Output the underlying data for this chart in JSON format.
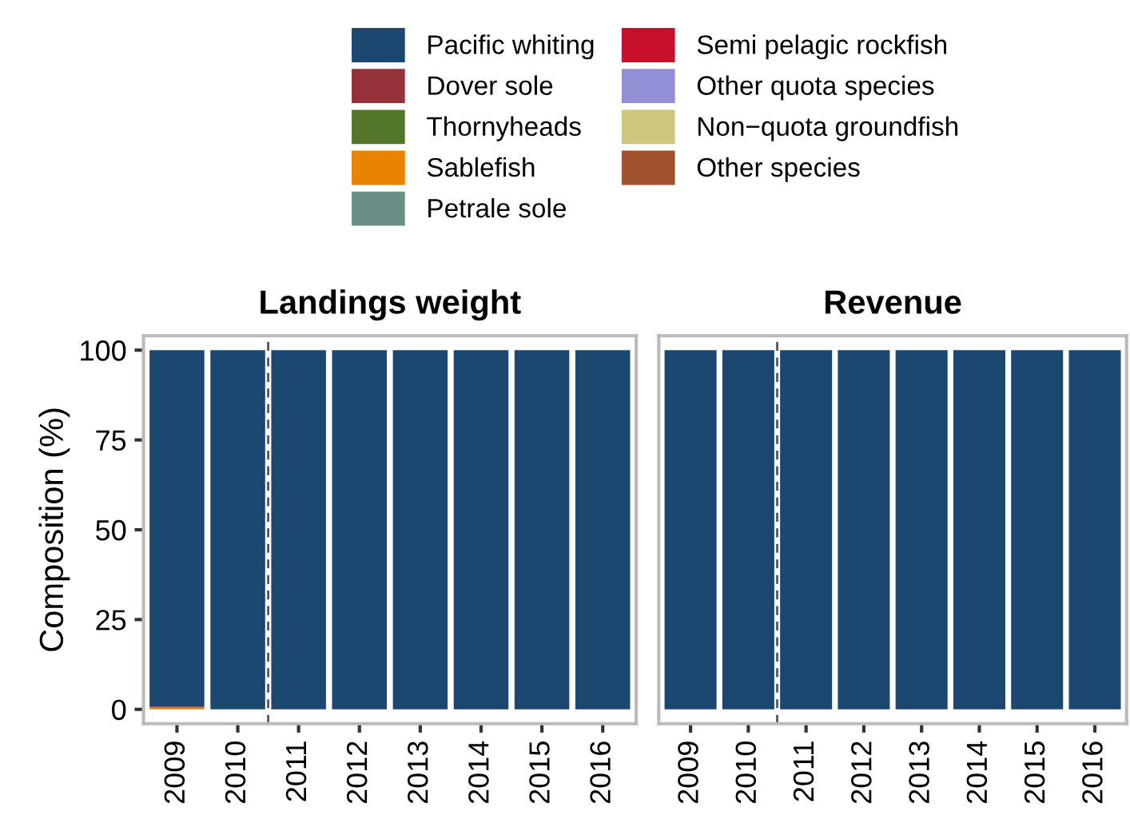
{
  "chart_data": [
    {
      "type": "bar",
      "title": "Landings weight",
      "ylabel": "Composition (%)",
      "stacked": true,
      "categories": [
        "2009",
        "2010",
        "2011",
        "2012",
        "2013",
        "2014",
        "2015",
        "2016"
      ],
      "ylim": [
        -4,
        104
      ],
      "yticks": [
        0,
        25,
        50,
        75,
        100
      ],
      "grid": false,
      "legend": "top",
      "series": [
        {
          "name": "Other species",
          "color": "#a0522d",
          "values": [
            0,
            0,
            0,
            0,
            0,
            0,
            0,
            0
          ]
        },
        {
          "name": "Non−quota groundfish",
          "color": "#cdc67e",
          "values": [
            0,
            0,
            0,
            0,
            0,
            0,
            0,
            0
          ]
        },
        {
          "name": "Other quota species",
          "color": "#938fd6",
          "values": [
            0,
            0,
            0,
            0,
            0,
            0,
            0,
            0
          ]
        },
        {
          "name": "Semi pelagic rockfish",
          "color": "#c8102e",
          "values": [
            0,
            0,
            0,
            0,
            0,
            0,
            0,
            0
          ]
        },
        {
          "name": "Petrale sole",
          "color": "#6b8f87",
          "values": [
            0,
            0,
            0,
            0,
            0,
            0,
            0,
            0
          ]
        },
        {
          "name": "Sablefish",
          "color": "#e98300",
          "values": [
            0.5,
            0,
            0,
            0,
            0,
            0,
            0,
            0
          ]
        },
        {
          "name": "Thornyheads",
          "color": "#53762a",
          "values": [
            0,
            0,
            0,
            0,
            0,
            0,
            0,
            0
          ]
        },
        {
          "name": "Dover sole",
          "color": "#943139",
          "values": [
            0.3,
            0.2,
            0,
            0,
            0,
            0,
            0,
            0
          ]
        },
        {
          "name": "Pacific whiting",
          "color": "#1b4770",
          "values": [
            99.2,
            99.8,
            100,
            100,
            100,
            100,
            100,
            100
          ]
        }
      ]
    },
    {
      "type": "bar",
      "title": "Revenue",
      "stacked": true,
      "categories": [
        "2009",
        "2010",
        "2011",
        "2012",
        "2013",
        "2014",
        "2015",
        "2016"
      ],
      "ylim": [
        -4,
        104
      ],
      "yticks": [
        0,
        25,
        50,
        75,
        100
      ],
      "grid": false,
      "tick_labels": "x",
      "series": [
        {
          "color": "#1b4770",
          "values": [
            100,
            100,
            100,
            100,
            100,
            100,
            100,
            100
          ]
        }
      ]
    }
  ]
}
